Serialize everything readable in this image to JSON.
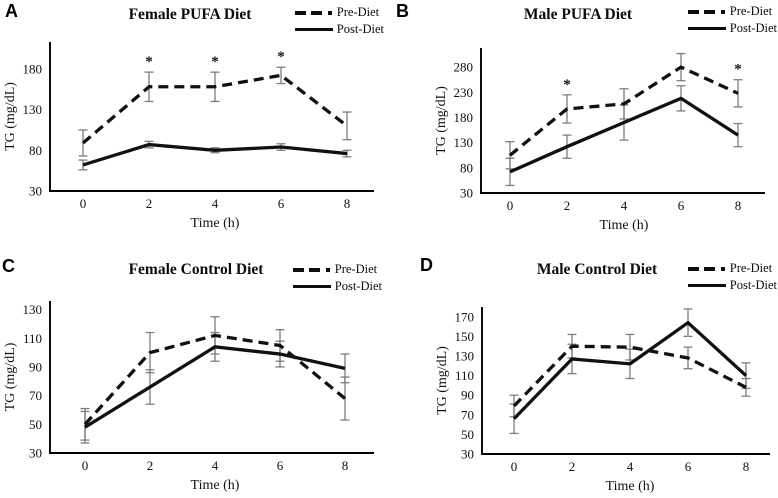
{
  "colors": {
    "line": "#111111",
    "error_bar": "#7d7d7d",
    "axis": "#000000",
    "background": "#ffffff"
  },
  "chart_data": [
    {
      "type": "line",
      "panel_label": "A",
      "title": "Female PUFA Diet",
      "xlabel": "Time (h)",
      "ylabel": "TG (mg/dL)",
      "x": [
        0,
        2,
        4,
        6,
        8
      ],
      "yticks": [
        30,
        80,
        130,
        180
      ],
      "ylim": [
        30,
        213
      ],
      "grid": false,
      "legend_position": "top-right",
      "series": [
        {
          "name": "Pre-Diet",
          "style": "dashed",
          "values": [
            89,
            158,
            158,
            172,
            110
          ],
          "errors": [
            16,
            18,
            18,
            10,
            17
          ]
        },
        {
          "name": "Post-Diet",
          "style": "solid",
          "values": [
            62,
            87,
            80,
            84,
            76
          ],
          "errors": [
            6,
            4,
            3,
            4,
            4
          ]
        }
      ],
      "annotations": [
        {
          "x": 2,
          "series": "Pre-Diet",
          "text": "*"
        },
        {
          "x": 4,
          "series": "Pre-Diet",
          "text": "*"
        },
        {
          "x": 6,
          "series": "Pre-Diet",
          "text": "*"
        }
      ]
    },
    {
      "type": "line",
      "panel_label": "B",
      "title": "Male PUFA Diet",
      "xlabel": "Time (h)",
      "ylabel": "TG (mg/dL)",
      "x": [
        0,
        2,
        4,
        6,
        8
      ],
      "yticks": [
        30,
        80,
        130,
        180,
        230,
        280
      ],
      "ylim": [
        30,
        318
      ],
      "grid": false,
      "legend_position": "top-right",
      "series": [
        {
          "name": "Pre-Diet",
          "style": "dashed",
          "values": [
            105,
            197,
            207,
            280,
            228
          ],
          "errors": [
            27,
            28,
            30,
            27,
            27
          ]
        },
        {
          "name": "Post-Diet",
          "style": "solid",
          "values": [
            72,
            122,
            170,
            218,
            145
          ],
          "errors": [
            27,
            23,
            35,
            25,
            23
          ]
        }
      ],
      "annotations": [
        {
          "x": 2,
          "series": "Pre-Diet",
          "text": "*"
        },
        {
          "x": 8,
          "series": "Pre-Diet",
          "text": "*"
        }
      ]
    },
    {
      "type": "line",
      "panel_label": "C",
      "title": "Female Control Diet",
      "xlabel": "Time (h)",
      "ylabel": "TG (mg/dL)",
      "x": [
        0,
        2,
        4,
        6,
        8
      ],
      "yticks": [
        30,
        50,
        70,
        90,
        110,
        130
      ],
      "ylim": [
        30,
        136
      ],
      "grid": false,
      "legend_position": "top-right",
      "series": [
        {
          "name": "Pre-Diet",
          "style": "dashed",
          "values": [
            50,
            100,
            112,
            105,
            68
          ],
          "errors": [
            11,
            14,
            13,
            11,
            15
          ]
        },
        {
          "name": "Post-Diet",
          "style": "solid",
          "values": [
            48,
            76,
            104,
            99,
            89
          ],
          "errors": [
            11,
            12,
            10,
            9,
            10
          ]
        }
      ],
      "annotations": []
    },
    {
      "type": "line",
      "panel_label": "D",
      "title": "Male Control Diet",
      "xlabel": "Time (h)",
      "ylabel": "TG (mg/dL)",
      "x": [
        0,
        2,
        4,
        6,
        8
      ],
      "yticks": [
        30,
        50,
        70,
        90,
        110,
        130,
        150,
        170
      ],
      "ylim": [
        30,
        180
      ],
      "grid": false,
      "legend_position": "top-right",
      "series": [
        {
          "name": "Pre-Diet",
          "style": "dashed",
          "values": [
            79,
            140,
            139,
            128,
            98
          ],
          "errors": [
            11,
            12,
            13,
            11,
            9
          ]
        },
        {
          "name": "Post-Diet",
          "style": "solid",
          "values": [
            66,
            127,
            122,
            164,
            110
          ],
          "errors": [
            15,
            15,
            15,
            14,
            13
          ]
        }
      ],
      "annotations": []
    }
  ]
}
